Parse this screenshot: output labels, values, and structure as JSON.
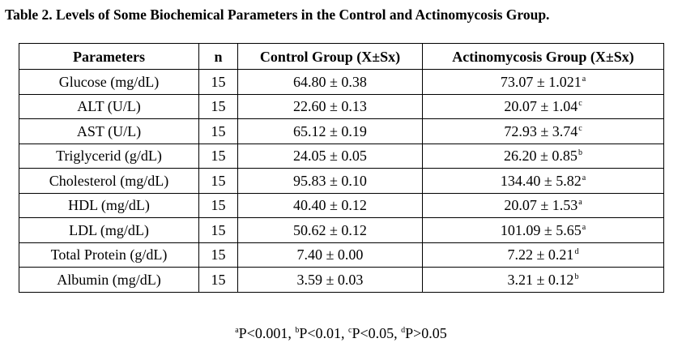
{
  "title": "Table 2. Levels of Some Biochemical Parameters in the Control and Actinomycosis Group.",
  "headers": {
    "parameter": "Parameters",
    "n": "n",
    "control": "Control Group (X±Sx)",
    "actinomycosis": "Actinomycosis Group (X±Sx)"
  },
  "rows": [
    {
      "parameter": "Glucose (mg/dL)",
      "n": "15",
      "control": "64.80 ± 0.38",
      "actinomycosis": "73.07 ± 1.021",
      "sig": "a"
    },
    {
      "parameter": "ALT (U/L)",
      "n": "15",
      "control": "22.60 ± 0.13",
      "actinomycosis": "20.07 ± 1.04",
      "sig": "c"
    },
    {
      "parameter": "AST (U/L)",
      "n": "15",
      "control": "65.12 ± 0.19",
      "actinomycosis": "72.93 ± 3.74",
      "sig": "c"
    },
    {
      "parameter": "Triglycerid (g/dL)",
      "n": "15",
      "control": "24.05 ± 0.05",
      "actinomycosis": "26.20 ± 0.85",
      "sig": "b"
    },
    {
      "parameter": "Cholesterol (mg/dL)",
      "n": "15",
      "control": "95.83 ± 0.10",
      "actinomycosis": "134.40 ± 5.82",
      "sig": "a"
    },
    {
      "parameter": "HDL (mg/dL)",
      "n": "15",
      "control": "40.40 ± 0.12",
      "actinomycosis": "20.07 ± 1.53",
      "sig": "a"
    },
    {
      "parameter": "LDL (mg/dL)",
      "n": "15",
      "control": "50.62 ± 0.12",
      "actinomycosis": "101.09 ± 5.65",
      "sig": "a"
    },
    {
      "parameter": "Total Protein (g/dL)",
      "n": "15",
      "control": "7.40 ± 0.00",
      "actinomycosis": "7.22 ± 0.21",
      "sig": "d"
    },
    {
      "parameter": "Albumin (mg/dL)",
      "n": "15",
      "control": "3.59 ± 0.03",
      "actinomycosis": "3.21 ± 0.12",
      "sig": "b"
    }
  ],
  "footnote": [
    {
      "mark": "a",
      "text": "P<0.001, "
    },
    {
      "mark": "b",
      "text": "P<0.01, "
    },
    {
      "mark": "c",
      "text": "P<0.05, "
    },
    {
      "mark": "d",
      "text": "P>0.05"
    }
  ]
}
